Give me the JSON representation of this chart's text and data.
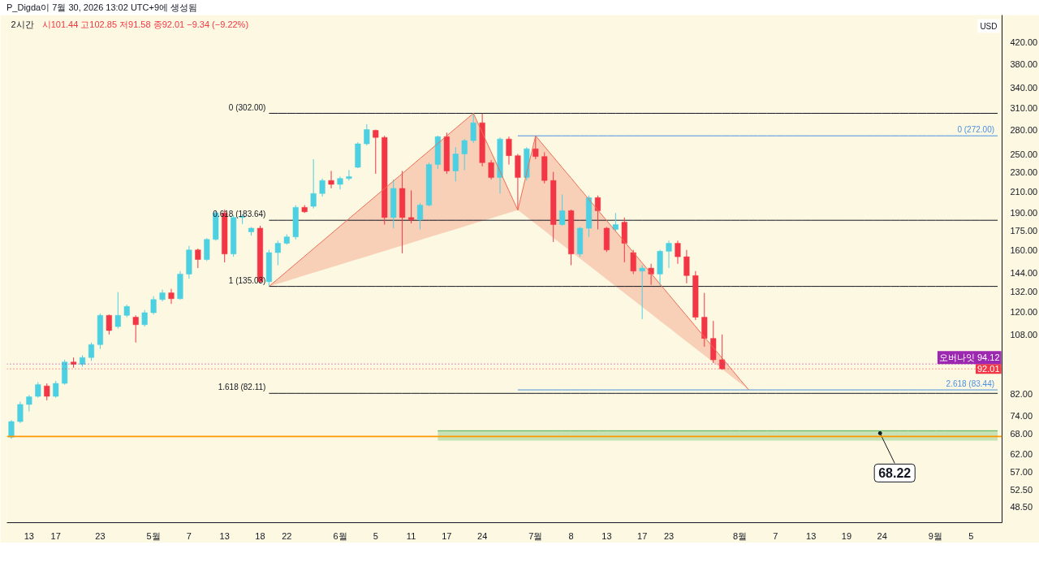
{
  "chart_data": {
    "type": "candlestick",
    "title": "P_Digda이 7월 30, 2026 13:02 UTC+9에 생성됨",
    "subtitle": "2시간",
    "ylabel": "USD",
    "annotations": [
      "시101.44 고102.85 저91.58 종92.01 −9.34 (−9.22%)",
      "0 (302.00)",
      "0.618 (183.64)",
      "1 (135.03)",
      "1.618 (82.11)",
      {
        "text": "0 (272.00)",
        "y": 272.0
      },
      {
        "text": "2.618 (83.44)",
        "y": 83.44
      },
      {
        "text": "68.22",
        "y": 68.22
      }
    ],
    "categories": [
      null,
      null,
      "13",
      null,
      null,
      "17",
      null,
      null,
      null,
      null,
      "23",
      null,
      null,
      null,
      null,
      null,
      "5월",
      null,
      null,
      null,
      "7",
      null,
      null,
      null,
      "13",
      null,
      null,
      null,
      "18",
      null,
      null,
      "22",
      null,
      null,
      null,
      null,
      null,
      "6월",
      null,
      null,
      null,
      "5",
      null,
      null,
      null,
      "11",
      null,
      null,
      null,
      "17",
      null,
      null,
      null,
      "24",
      null,
      null,
      null,
      null,
      null,
      "7월",
      null,
      null,
      null,
      "8",
      null,
      null,
      null,
      "13",
      null,
      null,
      null,
      "17",
      null,
      null,
      "23",
      null,
      null,
      null,
      null,
      null,
      null,
      null,
      "8월",
      null,
      null,
      null,
      "7",
      null,
      null,
      null,
      "13",
      null,
      null,
      null,
      "19",
      null,
      null,
      null,
      "24",
      null,
      null,
      null,
      null,
      null,
      "9월",
      null,
      null,
      null,
      "5",
      null,
      null,
      null
    ],
    "ohlc": [
      [
        67.0,
        72.5,
        66.5,
        72.0
      ],
      [
        72.0,
        79.0,
        71.5,
        78.0
      ],
      [
        78.0,
        81.5,
        75.5,
        80.8
      ],
      [
        81.0,
        86.5,
        80.5,
        85.5
      ],
      [
        85.0,
        86.0,
        79.5,
        81.0
      ],
      [
        81.0,
        87.0,
        80.5,
        86.0
      ],
      [
        86.0,
        96.0,
        85.5,
        95.0
      ],
      [
        95.0,
        97.0,
        92.5,
        94.0
      ],
      [
        94.0,
        98.0,
        93.0,
        97.0
      ],
      [
        97.0,
        104.0,
        95.5,
        103.0
      ],
      [
        103.0,
        119.0,
        101.0,
        118.0
      ],
      [
        118.0,
        118.5,
        108.0,
        110.0
      ],
      [
        112.0,
        131.5,
        111.0,
        118.0
      ],
      [
        118.0,
        124.0,
        117.0,
        123.0
      ],
      [
        117.0,
        118.0,
        104.0,
        113.0
      ],
      [
        113.0,
        121.0,
        112.0,
        119.5
      ],
      [
        119.5,
        129.0,
        118.5,
        127.0
      ],
      [
        127.0,
        133.0,
        126.0,
        131.0
      ],
      [
        131.0,
        133.5,
        124.5,
        127.5
      ],
      [
        127.5,
        145.0,
        127.0,
        143.0
      ],
      [
        143.0,
        163.0,
        140.0,
        160.0
      ],
      [
        160.0,
        161.0,
        147.0,
        153.0
      ],
      [
        153.0,
        169.0,
        152.0,
        168.0
      ],
      [
        168.0,
        192.0,
        167.0,
        190.0
      ],
      [
        190.0,
        193.0,
        151.0,
        157.0
      ],
      [
        157.0,
        188.0,
        155.0,
        186.0
      ],
      [
        186.0,
        189.0,
        180.5,
        187.0
      ],
      [
        174.0,
        178.0,
        171.0,
        177.0
      ],
      [
        177.0,
        179.0,
        137.5,
        138.0
      ],
      [
        138.0,
        160.0,
        135.03,
        158.0
      ],
      [
        158.0,
        167.0,
        149.0,
        165.0
      ],
      [
        165.0,
        172.0,
        164.0,
        170.0
      ],
      [
        170.0,
        197.0,
        168.0,
        195.0
      ],
      [
        195.0,
        197.0,
        190.0,
        191.0
      ],
      [
        196.0,
        244.0,
        194.0,
        208.0
      ],
      [
        208.0,
        223.0,
        205.0,
        221.0
      ],
      [
        221.0,
        231.0,
        213.0,
        217.0
      ],
      [
        217.0,
        225.0,
        212.0,
        223.0
      ],
      [
        223.0,
        232.0,
        221.0,
        225.0
      ],
      [
        235.0,
        264.0,
        234.0,
        262.0
      ],
      [
        262.0,
        287.0,
        260.0,
        280.0
      ],
      [
        279.0,
        280.0,
        228.0,
        270.0
      ],
      [
        270.0,
        272.0,
        180.0,
        186.0
      ],
      [
        186.0,
        222.0,
        177.0,
        213.0
      ],
      [
        213.0,
        231.0,
        157.5,
        186.0
      ],
      [
        186.0,
        211.0,
        181.0,
        184.0
      ],
      [
        184.0,
        199.0,
        176.0,
        197.0
      ],
      [
        197.0,
        240.0,
        196.0,
        238.0
      ],
      [
        238.0,
        272.0,
        233.0,
        271.0
      ],
      [
        271.0,
        276.0,
        228.0,
        231.0
      ],
      [
        231.0,
        258.0,
        220.0,
        250.0
      ],
      [
        250.0,
        268.0,
        232.0,
        266.0
      ],
      [
        266.0,
        302.0,
        263.0,
        289.0
      ],
      [
        289.0,
        301.5,
        236.0,
        240.0
      ],
      [
        240.0,
        243.0,
        222.0,
        224.0
      ],
      [
        224.0,
        270.0,
        208.0,
        268.0
      ],
      [
        268.0,
        271.0,
        238.0,
        248.0
      ],
      [
        248.0,
        250.0,
        192.6,
        224.0
      ],
      [
        224.0,
        258.0,
        221.0,
        256.0
      ],
      [
        256.0,
        272.0,
        244.0,
        247.0
      ],
      [
        247.0,
        252.0,
        218.0,
        221.0
      ],
      [
        221.0,
        230.0,
        166.0,
        180.0
      ],
      [
        180.0,
        207.0,
        179.0,
        192.0
      ],
      [
        192.0,
        193.0,
        149.0,
        157.0
      ],
      [
        157.0,
        178.0,
        155.0,
        177.0
      ],
      [
        177.0,
        206.0,
        170.0,
        204.0
      ],
      [
        204.0,
        206.0,
        176.0,
        192.0
      ],
      [
        177.0,
        178.0,
        158.5,
        160.0
      ],
      [
        176.0,
        190.0,
        174.0,
        180.0
      ],
      [
        182.0,
        186.0,
        151.0,
        165.0
      ],
      [
        158.0,
        160.0,
        143.0,
        145.0
      ],
      [
        145.0,
        149.0,
        116.0,
        147.0
      ],
      [
        147.0,
        150.0,
        136.0,
        143.0
      ],
      [
        143.0,
        160.0,
        135.5,
        159.0
      ],
      [
        159.0,
        167.0,
        147.0,
        165.0
      ],
      [
        165.0,
        167.0,
        150.0,
        155.0
      ],
      [
        155.0,
        160.0,
        137.0,
        142.0
      ],
      [
        142.0,
        145.0,
        115.5,
        117.0
      ],
      [
        117.0,
        131.0,
        102.0,
        106.0
      ],
      [
        106.0,
        115.0,
        94.5,
        96.0
      ],
      [
        96.0,
        108.0,
        91.58,
        92.01
      ],
      null,
      null,
      null,
      null,
      null,
      null,
      null,
      null,
      null,
      null,
      null,
      null,
      null,
      null,
      null,
      null,
      null,
      null,
      null,
      null,
      null,
      null,
      null,
      null,
      null,
      null,
      null,
      null,
      null,
      null,
      null
    ],
    "colors": [
      "#4dd0e1",
      "#4dd0e1",
      "#4dd0e1",
      "#4dd0e1",
      "#f23645",
      "#4dd0e1",
      "#4dd0e1",
      "#f23645",
      "#4dd0e1",
      "#4dd0e1",
      "#4dd0e1",
      "#f23645",
      "#4dd0e1",
      "#4dd0e1",
      "#f23645",
      "#4dd0e1",
      "#4dd0e1",
      "#4dd0e1",
      "#f23645",
      "#4dd0e1",
      "#4dd0e1",
      "#f23645",
      "#4dd0e1",
      "#4dd0e1",
      "#f23645",
      "#4dd0e1",
      "#4dd0e1",
      "#4dd0e1",
      "#f23645",
      "#4dd0e1",
      "#4dd0e1",
      "#4dd0e1",
      "#4dd0e1",
      "#f23645",
      "#4dd0e1",
      "#4dd0e1",
      "#f23645",
      "#4dd0e1",
      "#4dd0e1",
      "#4dd0e1",
      "#4dd0e1",
      "#f23645",
      "#f23645",
      "#4dd0e1",
      "#f23645",
      "#f23645",
      "#4dd0e1",
      "#4dd0e1",
      "#4dd0e1",
      "#f23645",
      "#4dd0e1",
      "#4dd0e1",
      "#4dd0e1",
      "#f23645",
      "#f23645",
      "#4dd0e1",
      "#f23645",
      "#f23645",
      "#4dd0e1",
      "#f23645",
      "#f23645",
      "#f23645",
      "#4dd0e1",
      "#f23645",
      "#4dd0e1",
      "#4dd0e1",
      "#f23645",
      "#f23645",
      "#4dd0e1",
      "#f23645",
      "#f23645",
      "#4dd0e1",
      "#f23645",
      "#4dd0e1",
      "#4dd0e1",
      "#f23645",
      "#f23645",
      "#f23645",
      "#f23645",
      "#f23645",
      "#f23645",
      null,
      null,
      null,
      null,
      null,
      null,
      null,
      null,
      null,
      null,
      null,
      null,
      null,
      null,
      null,
      null,
      null,
      null,
      null,
      null,
      null,
      null,
      null,
      null,
      null,
      null,
      null,
      null,
      null,
      null,
      null
    ],
    "series": [
      {
        "type": "line",
        "color": "#ee6e55",
        "values": [
          null,
          null,
          null,
          null,
          null,
          null,
          null,
          null,
          null,
          null,
          null,
          null,
          null,
          null,
          null,
          null,
          null,
          null,
          null,
          null,
          null,
          null,
          null,
          null,
          null,
          null,
          null,
          null,
          null,
          135.03,
          139.8,
          144.8,
          150.0,
          155.3,
          160.9,
          166.6,
          172.5,
          178.7,
          185.0,
          191.6,
          198.4,
          205.5,
          212.8,
          220.4,
          228.2,
          236.4,
          244.8,
          253.5,
          262.5,
          271.9,
          281.6,
          291.6,
          302.0,
          276.0,
          252.3,
          230.6,
          210.7,
          192.6,
          228.9,
          272.0,
          258.9,
          246.5,
          234.6,
          223.4,
          212.6,
          202.4,
          192.7,
          183.4,
          174.6,
          166.2,
          158.3,
          150.6,
          143.4,
          136.5,
          130.0,
          123.7,
          117.8,
          112.1,
          106.7,
          101.6,
          96.7,
          92.1,
          87.6,
          83.44,
          null,
          null,
          null,
          null,
          null,
          null,
          null,
          null,
          null,
          null,
          null,
          null,
          null,
          null,
          null,
          null,
          null,
          null,
          null,
          null,
          null,
          null,
          null,
          null,
          null,
          null,
          null,
          null
        ],
        "upper": [
          null,
          null,
          null,
          null,
          null,
          null,
          null,
          null,
          null,
          null,
          null,
          null,
          null,
          null,
          null,
          null,
          null,
          null,
          null,
          null,
          null,
          null,
          null,
          null,
          null,
          null,
          null,
          null,
          null,
          135.03,
          139.8,
          144.8,
          150.0,
          155.3,
          160.9,
          166.6,
          172.5,
          178.7,
          185.0,
          191.6,
          198.4,
          205.5,
          212.8,
          220.4,
          228.2,
          236.4,
          244.8,
          253.5,
          262.5,
          271.9,
          281.6,
          291.6,
          302.0,
          276.0,
          252.3,
          230.6,
          210.7,
          192.6,
          228.9,
          272.0,
          258.9,
          246.5,
          234.6,
          223.4,
          212.6,
          202.4,
          192.7,
          183.4,
          174.6,
          166.2,
          158.3,
          150.6,
          143.4,
          136.5,
          130.0,
          123.7,
          117.8,
          112.1,
          106.7,
          101.6,
          96.7,
          92.1,
          87.6,
          83.44,
          null,
          null,
          null,
          null,
          null,
          null,
          null,
          null,
          null,
          null,
          null,
          null,
          null,
          null,
          null,
          null,
          null,
          null,
          null,
          null,
          null,
          null,
          null,
          null,
          null,
          null,
          null,
          null
        ],
        "lower": [
          null,
          null,
          null,
          null,
          null,
          null,
          null,
          null,
          null,
          null,
          null,
          null,
          null,
          null,
          null,
          null,
          null,
          null,
          null,
          null,
          null,
          null,
          null,
          null,
          null,
          null,
          null,
          null,
          null,
          135.03,
          136.8,
          138.5,
          140.3,
          142.1,
          143.9,
          145.7,
          147.6,
          149.4,
          151.4,
          153.3,
          155.2,
          157.2,
          159.2,
          161.3,
          163.3,
          165.4,
          167.5,
          169.7,
          171.8,
          174.0,
          176.2,
          178.5,
          180.8,
          183.1,
          185.4,
          187.8,
          190.2,
          192.6,
          186.5,
          180.6,
          174.9,
          169.3,
          164.0,
          158.8,
          153.8,
          148.9,
          144.2,
          139.6,
          135.2,
          130.9,
          126.8,
          122.8,
          118.9,
          115.1,
          111.5,
          107.9,
          104.5,
          101.2,
          98.0,
          94.9,
          91.9,
          89.0,
          86.2,
          83.44,
          null,
          null,
          null,
          null,
          null,
          null,
          null,
          null,
          null,
          null,
          null,
          null,
          null,
          null,
          null,
          null,
          null,
          null,
          null,
          null,
          null,
          null,
          null,
          null,
          null,
          null,
          null,
          null
        ]
      },
      {
        "type": "line",
        "color": "#4caf50",
        "values": [
          null,
          null,
          null,
          null,
          null,
          null,
          null,
          null,
          null,
          null,
          null,
          null,
          null,
          null,
          null,
          null,
          null,
          null,
          null,
          null,
          null,
          null,
          null,
          null,
          null,
          null,
          null,
          null,
          null,
          null,
          null,
          null,
          null,
          null,
          null,
          null,
          null,
          null,
          null,
          null,
          null,
          null,
          null,
          null,
          null,
          null,
          null,
          null,
          69.0,
          69.0,
          69.0,
          69.0,
          69.0,
          69.0,
          69.0,
          69.0,
          69.0,
          69.0,
          69.0,
          69.0,
          69.0,
          69.0,
          69.0,
          69.0,
          69.0,
          69.0,
          69.0,
          69.0,
          69.0,
          69.0,
          69.0,
          69.0,
          69.0,
          69.0,
          69.0,
          69.0,
          69.0,
          69.0,
          69.0,
          69.0,
          69.0,
          69.0,
          69.0,
          69.0,
          69.0,
          69.0,
          69.0,
          69.0,
          69.0,
          69.0,
          69.0,
          69.0,
          69.0,
          69.0,
          69.0,
          69.0,
          69.0,
          69.0,
          69.0,
          69.0,
          69.0,
          69.0,
          69.0,
          69.0,
          69.0,
          69.0,
          69.0,
          69.0,
          69.0,
          69.0,
          69.0,
          69.0
        ],
        "upper": [
          null,
          null,
          null,
          null,
          null,
          null,
          null,
          null,
          null,
          null,
          null,
          null,
          null,
          null,
          null,
          null,
          null,
          null,
          null,
          null,
          null,
          null,
          null,
          null,
          null,
          null,
          null,
          null,
          null,
          null,
          null,
          null,
          null,
          null,
          null,
          null,
          null,
          null,
          null,
          null,
          null,
          null,
          null,
          null,
          null,
          null,
          null,
          null,
          69.0,
          69.0,
          69.0,
          69.0,
          69.0,
          69.0,
          69.0,
          69.0,
          69.0,
          69.0,
          69.0,
          69.0,
          69.0,
          69.0,
          69.0,
          69.0,
          69.0,
          69.0,
          69.0,
          69.0,
          69.0,
          69.0,
          69.0,
          69.0,
          69.0,
          69.0,
          69.0,
          69.0,
          69.0,
          69.0,
          69.0,
          69.0,
          69.0,
          69.0,
          69.0,
          69.0,
          69.0,
          69.0,
          69.0,
          69.0,
          69.0,
          69.0,
          69.0,
          69.0,
          69.0,
          69.0,
          69.0,
          69.0,
          69.0,
          69.0,
          69.0,
          69.0,
          69.0,
          69.0,
          69.0,
          69.0,
          69.0,
          69.0,
          69.0,
          69.0,
          69.0,
          69.0,
          69.0,
          69.0
        ],
        "lower": [
          null,
          null,
          null,
          null,
          null,
          null,
          null,
          null,
          null,
          null,
          null,
          null,
          null,
          null,
          null,
          null,
          null,
          null,
          null,
          null,
          null,
          null,
          null,
          null,
          null,
          null,
          null,
          null,
          null,
          null,
          null,
          null,
          null,
          null,
          null,
          null,
          null,
          null,
          null,
          null,
          null,
          null,
          null,
          null,
          null,
          null,
          null,
          null,
          65.9,
          65.9,
          65.9,
          65.9,
          65.9,
          65.9,
          65.9,
          65.9,
          65.9,
          65.9,
          65.9,
          65.9,
          65.9,
          65.9,
          65.9,
          65.9,
          65.9,
          65.9,
          65.9,
          65.9,
          65.9,
          65.9,
          65.9,
          65.9,
          65.9,
          65.9,
          65.9,
          65.9,
          65.9,
          65.9,
          65.9,
          65.9,
          65.9,
          65.9,
          65.9,
          65.9,
          65.9,
          65.9,
          65.9,
          65.9,
          65.9,
          65.9,
          65.9,
          65.9,
          65.9,
          65.9,
          65.9,
          65.9,
          65.9,
          65.9,
          65.9,
          65.9,
          65.9,
          65.9,
          65.9,
          65.9,
          65.9,
          65.9,
          65.9,
          65.9,
          65.9,
          65.9,
          65.9,
          65.9
        ]
      },
      {
        "type": "line",
        "color": "#131722",
        "values": [
          null,
          null,
          null,
          null,
          null,
          null,
          null,
          null,
          null,
          null,
          null,
          null,
          null,
          null,
          null,
          null,
          null,
          null,
          null,
          null,
          null,
          null,
          null,
          null,
          null,
          null,
          null,
          null,
          null,
          302.0,
          302.0,
          302.0,
          302.0,
          302.0,
          302.0,
          302.0,
          302.0,
          302.0,
          302.0,
          302.0,
          302.0,
          302.0,
          302.0,
          302.0,
          302.0,
          302.0,
          302.0,
          302.0,
          302.0,
          302.0,
          302.0,
          302.0,
          302.0,
          302.0,
          302.0,
          302.0,
          302.0,
          302.0,
          302.0,
          302.0,
          302.0,
          302.0,
          302.0,
          302.0,
          302.0,
          302.0,
          302.0,
          302.0,
          302.0,
          302.0,
          302.0,
          302.0,
          302.0,
          302.0,
          302.0,
          302.0,
          302.0,
          302.0,
          302.0,
          302.0,
          302.0,
          302.0,
          302.0,
          302.0,
          302.0,
          302.0,
          302.0,
          302.0,
          302.0,
          302.0,
          302.0,
          302.0,
          302.0,
          302.0,
          302.0,
          302.0,
          302.0,
          302.0,
          302.0,
          302.0,
          302.0,
          302.0,
          302.0,
          302.0,
          302.0,
          302.0,
          302.0,
          302.0,
          302.0,
          302.0,
          302.0,
          302.0
        ]
      },
      {
        "type": "line",
        "color": "#131722",
        "values": [
          null,
          null,
          null,
          null,
          null,
          null,
          null,
          null,
          null,
          null,
          null,
          null,
          null,
          null,
          null,
          null,
          null,
          null,
          null,
          null,
          null,
          null,
          null,
          null,
          null,
          null,
          null,
          null,
          null,
          183.64,
          183.64,
          183.64,
          183.64,
          183.64,
          183.64,
          183.64,
          183.64,
          183.64,
          183.64,
          183.64,
          183.64,
          183.64,
          183.64,
          183.64,
          183.64,
          183.64,
          183.64,
          183.64,
          183.64,
          183.64,
          183.64,
          183.64,
          183.64,
          183.64,
          183.64,
          183.64,
          183.64,
          183.64,
          183.64,
          183.64,
          183.64,
          183.64,
          183.64,
          183.64,
          183.64,
          183.64,
          183.64,
          183.64,
          183.64,
          183.64,
          183.64,
          183.64,
          183.64,
          183.64,
          183.64,
          183.64,
          183.64,
          183.64,
          183.64,
          183.64,
          183.64,
          183.64,
          183.64,
          183.64,
          183.64,
          183.64,
          183.64,
          183.64,
          183.64,
          183.64,
          183.64,
          183.64,
          183.64,
          183.64,
          183.64,
          183.64,
          183.64,
          183.64,
          183.64,
          183.64,
          183.64,
          183.64,
          183.64,
          183.64,
          183.64,
          183.64,
          183.64,
          183.64,
          183.64,
          183.64,
          183.64,
          183.64
        ]
      },
      {
        "type": "line",
        "color": "#131722",
        "values": [
          null,
          null,
          null,
          null,
          null,
          null,
          null,
          null,
          null,
          null,
          null,
          null,
          null,
          null,
          null,
          null,
          null,
          null,
          null,
          null,
          null,
          null,
          null,
          null,
          null,
          null,
          null,
          null,
          null,
          135.03,
          135.03,
          135.03,
          135.03,
          135.03,
          135.03,
          135.03,
          135.03,
          135.03,
          135.03,
          135.03,
          135.03,
          135.03,
          135.03,
          135.03,
          135.03,
          135.03,
          135.03,
          135.03,
          135.03,
          135.03,
          135.03,
          135.03,
          135.03,
          135.03,
          135.03,
          135.03,
          135.03,
          135.03,
          135.03,
          135.03,
          135.03,
          135.03,
          135.03,
          135.03,
          135.03,
          135.03,
          135.03,
          135.03,
          135.03,
          135.03,
          135.03,
          135.03,
          135.03,
          135.03,
          135.03,
          135.03,
          135.03,
          135.03,
          135.03,
          135.03,
          135.03,
          135.03,
          135.03,
          135.03,
          135.03,
          135.03,
          135.03,
          135.03,
          135.03,
          135.03,
          135.03,
          135.03,
          135.03,
          135.03,
          135.03,
          135.03,
          135.03,
          135.03,
          135.03,
          135.03,
          135.03,
          135.03,
          135.03,
          135.03,
          135.03,
          135.03,
          135.03,
          135.03,
          135.03,
          135.03,
          135.03,
          135.03
        ]
      },
      {
        "type": "line",
        "color": "#131722",
        "values": [
          null,
          null,
          null,
          null,
          null,
          null,
          null,
          null,
          null,
          null,
          null,
          null,
          null,
          null,
          null,
          null,
          null,
          null,
          null,
          null,
          null,
          null,
          null,
          null,
          null,
          null,
          null,
          null,
          null,
          82.11,
          82.11,
          82.11,
          82.11,
          82.11,
          82.11,
          82.11,
          82.11,
          82.11,
          82.11,
          82.11,
          82.11,
          82.11,
          82.11,
          82.11,
          82.11,
          82.11,
          82.11,
          82.11,
          82.11,
          82.11,
          82.11,
          82.11,
          82.11,
          82.11,
          82.11,
          82.11,
          82.11,
          82.11,
          82.11,
          82.11,
          82.11,
          82.11,
          82.11,
          82.11,
          82.11,
          82.11,
          82.11,
          82.11,
          82.11,
          82.11,
          82.11,
          82.11,
          82.11,
          82.11,
          82.11,
          82.11,
          82.11,
          82.11,
          82.11,
          82.11,
          82.11,
          82.11,
          82.11,
          82.11,
          82.11,
          82.11,
          82.11,
          82.11,
          82.11,
          82.11,
          82.11,
          82.11,
          82.11,
          82.11,
          82.11,
          82.11,
          82.11,
          82.11,
          82.11,
          82.11,
          82.11,
          82.11,
          82.11,
          82.11,
          82.11,
          82.11,
          82.11,
          82.11,
          82.11,
          82.11,
          82.11,
          82.11
        ]
      },
      {
        "type": "line",
        "color": "#4a90e2",
        "values": [
          null,
          null,
          null,
          null,
          null,
          null,
          null,
          null,
          null,
          null,
          null,
          null,
          null,
          null,
          null,
          null,
          null,
          null,
          null,
          null,
          null,
          null,
          null,
          null,
          null,
          null,
          null,
          null,
          null,
          null,
          null,
          null,
          null,
          null,
          null,
          null,
          null,
          null,
          null,
          null,
          null,
          null,
          null,
          null,
          null,
          null,
          null,
          null,
          null,
          null,
          null,
          null,
          null,
          null,
          null,
          null,
          null,
          272.0,
          272.0,
          272.0,
          272.0,
          272.0,
          272.0,
          272.0,
          272.0,
          272.0,
          272.0,
          272.0,
          272.0,
          272.0,
          272.0,
          272.0,
          272.0,
          272.0,
          272.0,
          272.0,
          272.0,
          272.0,
          272.0,
          272.0,
          272.0,
          272.0,
          272.0,
          272.0,
          272.0,
          272.0,
          272.0,
          272.0,
          272.0,
          272.0,
          272.0,
          272.0,
          272.0,
          272.0,
          272.0,
          272.0,
          272.0,
          272.0,
          272.0,
          272.0,
          272.0,
          272.0,
          272.0,
          272.0,
          272.0,
          272.0,
          272.0,
          272.0,
          272.0,
          272.0,
          272.0,
          272.0
        ]
      },
      {
        "type": "line",
        "color": "#4a90e2",
        "values": [
          null,
          null,
          null,
          null,
          null,
          null,
          null,
          null,
          null,
          null,
          null,
          null,
          null,
          null,
          null,
          null,
          null,
          null,
          null,
          null,
          null,
          null,
          null,
          null,
          null,
          null,
          null,
          null,
          null,
          null,
          null,
          null,
          null,
          null,
          null,
          null,
          null,
          null,
          null,
          null,
          null,
          null,
          null,
          null,
          null,
          null,
          null,
          null,
          null,
          null,
          null,
          null,
          null,
          null,
          null,
          null,
          null,
          83.44,
          83.44,
          83.44,
          83.44,
          83.44,
          83.44,
          83.44,
          83.44,
          83.44,
          83.44,
          83.44,
          83.44,
          83.44,
          83.44,
          83.44,
          83.44,
          83.44,
          83.44,
          83.44,
          83.44,
          83.44,
          83.44,
          83.44,
          83.44,
          83.44,
          83.44,
          83.44,
          83.44,
          83.44,
          83.44,
          83.44,
          83.44,
          83.44,
          83.44,
          83.44,
          83.44,
          83.44,
          83.44,
          83.44,
          83.44,
          83.44,
          83.44,
          83.44,
          83.44,
          83.44,
          83.44,
          83.44,
          83.44,
          83.44,
          83.44,
          83.44,
          83.44,
          83.44,
          83.44,
          83.44
        ]
      }
    ],
    "ref_lines": [
      {
        "axis": "y",
        "value": 94.12,
        "label": "오버나잇 94.12",
        "color": "#9c27b0",
        "line_style": "dotted"
      },
      {
        "axis": "y",
        "value": 92.01,
        "label": "92.01",
        "color": "#f23645",
        "line_style": "dotted"
      },
      {
        "axis": "y",
        "value": 67.2,
        "color": "#ff9800"
      }
    ],
    "log": "y",
    "ylim": [
      45.0,
      477.0
    ],
    "yticks": [
      {
        "value": 48.5,
        "label": "48.50"
      },
      {
        "value": 52.5,
        "label": "52.50"
      },
      {
        "value": 57,
        "label": "57.00"
      },
      {
        "value": 62,
        "label": "62.00"
      },
      {
        "value": 68,
        "label": "68.00"
      },
      {
        "value": 74,
        "label": "74.00"
      },
      {
        "value": 82,
        "label": "82.00"
      },
      {
        "value": 108,
        "label": "108.00"
      },
      {
        "value": 120,
        "label": "120.00"
      },
      {
        "value": 132,
        "label": "132.00"
      },
      {
        "value": 144,
        "label": "144.00"
      },
      {
        "value": 160,
        "label": "160.00"
      },
      {
        "value": 175,
        "label": "175.00"
      },
      {
        "value": 190,
        "label": "190.00"
      },
      {
        "value": 210,
        "label": "210.00"
      },
      {
        "value": 230,
        "label": "230.00"
      },
      {
        "value": 250,
        "label": "250.00"
      },
      {
        "value": 280,
        "label": "280.00"
      },
      {
        "value": 310,
        "label": "310.00"
      },
      {
        "value": 340,
        "label": "340.00"
      },
      {
        "value": 380,
        "label": "380.00"
      },
      {
        "value": 420,
        "label": "420.00"
      }
    ]
  }
}
